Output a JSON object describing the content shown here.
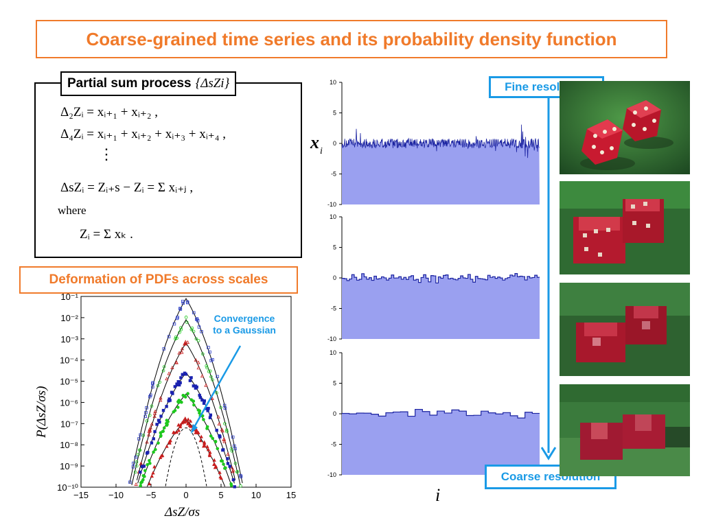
{
  "title": "Coarse-grained time series and its probability density function",
  "partial_sum": {
    "label": "Partial sum process",
    "label_symbol": "{ΔsZi}",
    "eq1": "Δ₂Zᵢ = xᵢ₊₁ + xᵢ₊₂ ,",
    "eq2": "Δ₄Zᵢ = xᵢ₊₁ + xᵢ₊₂ + xᵢ₊₃ + xᵢ₊₄ ,",
    "dots": "⋮",
    "eq3": "ΔsZᵢ = Zᵢ₊s − Zᵢ = Σ xᵢ₊ⱼ ,",
    "where": "where",
    "eq4": "Zᵢ = Σ xₖ ."
  },
  "deformation_label": "Deformation of PDFs across scales",
  "annotation": "Convergence\nto a Gaussian",
  "fine_label": "Fine resolution",
  "coarse_label": "Coarse resolution",
  "ts_ylabel": "x",
  "ts_ylabel_sub": "i",
  "ts_xlabel": "i",
  "pdf_ylabel": "P(ΔsZ/σs)",
  "pdf_xlabel": "ΔsZ/σs",
  "colors": {
    "accent_orange": "#f07a2a",
    "accent_blue": "#1a9ae6",
    "series_line": "#1a22a0",
    "series_fill": "#9aa0f0"
  },
  "chart_data": [
    {
      "type": "line",
      "name_hint": "fine",
      "yticks": [
        "10",
        "5",
        "0",
        "-5",
        "-10"
      ],
      "ylim": [
        -10,
        10
      ],
      "resolution": "fine"
    },
    {
      "type": "line",
      "name_hint": "medium",
      "yticks": [
        "10",
        "5",
        "0",
        "-5",
        "-10"
      ],
      "ylim": [
        -10,
        10
      ],
      "resolution": "medium"
    },
    {
      "type": "line",
      "name_hint": "coarse",
      "yticks": [
        "10",
        "5",
        "0",
        "-5",
        "-10"
      ],
      "ylim": [
        -10,
        10
      ],
      "resolution": "coarse"
    },
    {
      "type": "scatter",
      "xticks": [
        "−15",
        "−10",
        "−5",
        "0",
        "5",
        "10",
        "15"
      ],
      "yticks": [
        "10⁻¹",
        "10⁻²",
        "10⁻³",
        "10⁻⁴",
        "10⁻⁵",
        "10⁻⁶",
        "10⁻⁷",
        "10⁻⁸",
        "10⁻⁹",
        "10⁻¹⁰"
      ],
      "xlim": [
        -15,
        15
      ],
      "ylog_exponent_range": [
        -10,
        -1
      ],
      "yscale": "log",
      "series": [
        {
          "color": "#2a3cc8",
          "peak_exp": -1.1,
          "lambda": 0.55,
          "marker": "open-square"
        },
        {
          "color": "#1ec81e",
          "peak_exp": -2.1,
          "lambda": 0.6,
          "marker": "open-circle"
        },
        {
          "color": "#c81e1e",
          "peak_exp": -3.2,
          "lambda": 0.65,
          "marker": "open-triangle"
        },
        {
          "color": "#1a22b0",
          "peak_exp": -4.6,
          "lambda": 0.6,
          "marker": "filled-square"
        },
        {
          "color": "#1ec81e",
          "peak_exp": -5.6,
          "lambda": 0.6,
          "marker": "filled-circle"
        },
        {
          "color": "#c81e1e",
          "peak_exp": -6.8,
          "lambda": 0.6,
          "marker": "filled-triangle"
        }
      ]
    }
  ]
}
